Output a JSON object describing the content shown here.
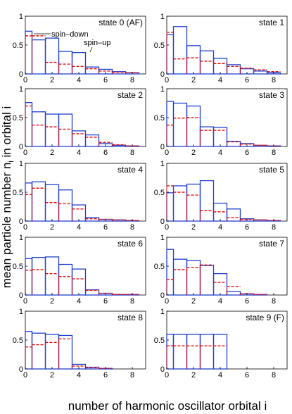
{
  "figure": {
    "xlabel": "number of harmonic oscillator orbital i",
    "ylabel": "mean particle number n",
    "ylabel_sub": "i",
    "ylabel_tail": " in orbital i",
    "legend_up": "spin–up",
    "legend_down": "spin–down"
  },
  "chart_data": [
    {
      "type": "bar",
      "title": "state 0 (AF)",
      "x": [
        0,
        1,
        2,
        3,
        4,
        5,
        6,
        7,
        8
      ],
      "xlim": [
        0,
        9
      ],
      "ylim": [
        0,
        1
      ],
      "xticks": [
        0,
        2,
        4,
        6,
        8
      ],
      "yticks": [
        0,
        0.5,
        1
      ],
      "series": [
        {
          "name": "spin–up",
          "color": "#2040d0",
          "values": [
            0.74,
            0.59,
            0.62,
            0.39,
            0.37,
            0.12,
            0.08,
            0.04,
            0.02
          ]
        },
        {
          "name": "spin–down",
          "color": "#e01010",
          "values": [
            0.66,
            0.66,
            0.2,
            0.17,
            0.13,
            0.09,
            0.05,
            0.03,
            0.02
          ]
        }
      ]
    },
    {
      "type": "bar",
      "title": "state 1",
      "x": [
        0,
        1,
        2,
        3,
        4,
        5,
        6,
        7,
        8
      ],
      "xlim": [
        0,
        9
      ],
      "ylim": [
        0,
        1
      ],
      "xticks": [
        0,
        2,
        4,
        6,
        8
      ],
      "yticks": [
        0,
        0.5,
        1
      ],
      "series": [
        {
          "values": [
            0.68,
            0.82,
            0.49,
            0.4,
            0.27,
            0.16,
            0.09,
            0.05,
            0.02
          ]
        },
        {
          "values": [
            0.72,
            0.26,
            0.28,
            0.22,
            0.18,
            0.13,
            0.1,
            0.07,
            0.04
          ]
        }
      ]
    },
    {
      "type": "bar",
      "title": "state 2",
      "x": [
        0,
        1,
        2,
        3,
        4,
        5,
        6,
        7,
        8
      ],
      "xlim": [
        0,
        9
      ],
      "ylim": [
        0,
        1
      ],
      "xticks": [
        0,
        2,
        4,
        6,
        8
      ],
      "yticks": [
        0,
        0.5,
        1
      ],
      "series": [
        {
          "values": [
            0.76,
            0.6,
            0.56,
            0.56,
            0.27,
            0.2,
            0.05,
            0.02,
            0.01
          ]
        },
        {
          "values": [
            0.7,
            0.37,
            0.34,
            0.3,
            0.22,
            0.16,
            0.07,
            0.03,
            0.01
          ]
        }
      ]
    },
    {
      "type": "bar",
      "title": "state 3",
      "x": [
        0,
        1,
        2,
        3,
        4,
        5,
        6,
        7,
        8
      ],
      "xlim": [
        0,
        9
      ],
      "ylim": [
        0,
        1
      ],
      "xticks": [
        0,
        2,
        4,
        6,
        8
      ],
      "yticks": [
        0,
        0.5,
        1
      ],
      "series": [
        {
          "values": [
            0.78,
            0.75,
            0.7,
            0.34,
            0.33,
            0.09,
            0.05,
            0.02,
            0.01
          ]
        },
        {
          "values": [
            0.37,
            0.49,
            0.5,
            0.28,
            0.28,
            0.08,
            0.04,
            0.02,
            0.01
          ]
        }
      ]
    },
    {
      "type": "bar",
      "title": "state 4",
      "x": [
        0,
        1,
        2,
        3,
        4,
        5,
        6,
        7,
        8
      ],
      "xlim": [
        0,
        9
      ],
      "ylim": [
        0,
        1
      ],
      "xticks": [
        0,
        2,
        4,
        6,
        8
      ],
      "yticks": [
        0,
        0.5,
        1
      ],
      "series": [
        {
          "values": [
            0.66,
            0.68,
            0.63,
            0.54,
            0.28,
            0.06,
            0.03,
            0.02,
            0.01
          ]
        },
        {
          "values": [
            0.46,
            0.57,
            0.32,
            0.3,
            0.21,
            0.04,
            0.03,
            0.02,
            0.01
          ]
        }
      ]
    },
    {
      "type": "bar",
      "title": "state 5",
      "x": [
        0,
        1,
        2,
        3,
        4,
        5,
        6,
        7,
        8
      ],
      "xlim": [
        0,
        9
      ],
      "ylim": [
        0,
        1
      ],
      "xticks": [
        0,
        2,
        4,
        6,
        8
      ],
      "yticks": [
        0,
        0.5,
        1
      ],
      "series": [
        {
          "values": [
            0.49,
            0.61,
            0.64,
            0.7,
            0.31,
            0.21,
            0.04,
            0.02,
            0.01
          ]
        },
        {
          "values": [
            0.61,
            0.5,
            0.45,
            0.18,
            0.16,
            0.06,
            0.03,
            0.02,
            0.01
          ]
        }
      ]
    },
    {
      "type": "bar",
      "title": "state 6",
      "x": [
        0,
        1,
        2,
        3,
        4,
        5,
        6,
        7,
        8
      ],
      "xlim": [
        0,
        9
      ],
      "ylim": [
        0,
        1
      ],
      "xticks": [
        0,
        2,
        4,
        6,
        8
      ],
      "yticks": [
        0,
        0.5,
        1
      ],
      "series": [
        {
          "values": [
            0.63,
            0.65,
            0.66,
            0.53,
            0.45,
            0.09,
            0.03,
            0.01,
            0.01
          ]
        },
        {
          "values": [
            0.43,
            0.44,
            0.37,
            0.32,
            0.28,
            0.08,
            0.03,
            0.01,
            0.01
          ]
        }
      ]
    },
    {
      "type": "bar",
      "title": "state 7",
      "x": [
        0,
        1,
        2,
        3,
        4,
        5,
        6,
        7,
        8
      ],
      "xlim": [
        0,
        9
      ],
      "ylim": [
        0,
        1
      ],
      "xticks": [
        0,
        2,
        4,
        6,
        8
      ],
      "yticks": [
        0,
        0.5,
        1
      ],
      "series": [
        {
          "values": [
            0.79,
            0.62,
            0.6,
            0.51,
            0.37,
            0.06,
            0.02,
            0.01,
            0.0
          ]
        },
        {
          "values": [
            0.27,
            0.44,
            0.48,
            0.52,
            0.22,
            0.15,
            0.02,
            0.01,
            0.0
          ]
        }
      ]
    },
    {
      "type": "bar",
      "title": "state 8",
      "x": [
        0,
        1,
        2,
        3,
        4,
        5,
        6,
        7,
        8
      ],
      "xlim": [
        0,
        9
      ],
      "ylim": [
        0,
        1
      ],
      "xticks": [
        0,
        2,
        4,
        6,
        8
      ],
      "yticks": [
        0,
        0.5,
        1
      ],
      "series": [
        {
          "values": [
            0.65,
            0.62,
            0.6,
            0.58,
            0.08,
            0.03,
            0.01,
            0.0,
            0.0
          ]
        },
        {
          "values": [
            0.38,
            0.42,
            0.46,
            0.52,
            0.05,
            0.02,
            0.01,
            0.0,
            0.0
          ]
        }
      ]
    },
    {
      "type": "bar",
      "title": "state 9 (F)",
      "x": [
        0,
        1,
        2,
        3,
        4,
        5,
        6,
        7,
        8
      ],
      "xlim": [
        0,
        9
      ],
      "ylim": [
        0,
        1
      ],
      "xticks": [
        0,
        2,
        4,
        6,
        8
      ],
      "yticks": [
        0,
        0.5,
        1
      ],
      "series": [
        {
          "values": [
            0.6,
            0.6,
            0.6,
            0.6,
            0.6,
            0,
            0,
            0,
            0
          ]
        },
        {
          "values": [
            0.4,
            0.4,
            0.4,
            0.4,
            0.4,
            0,
            0,
            0,
            0
          ]
        }
      ]
    }
  ]
}
